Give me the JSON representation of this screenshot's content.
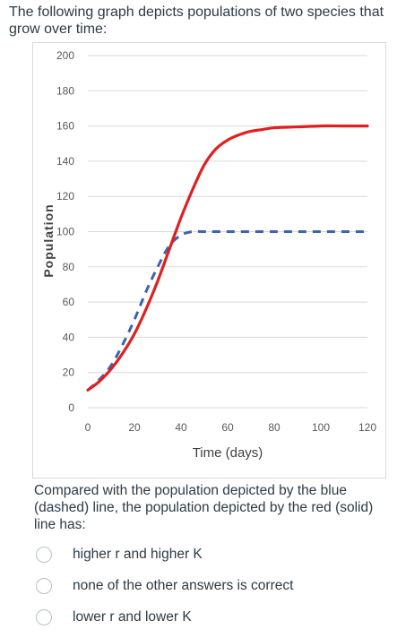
{
  "question": {
    "intro": "The following graph depicts populations of two species that grow over time:",
    "prompt": "Compared with the population depicted by the blue (dashed) line, the population depicted by the red (solid) line has:",
    "options": [
      "higher r and higher K",
      "none of the other answers is correct",
      "lower r and lower K"
    ]
  },
  "chart_data": {
    "type": "line",
    "xlabel": "Time (days)",
    "ylabel": "Population",
    "xlim": [
      0,
      120
    ],
    "ylim": [
      0,
      200
    ],
    "xticks": [
      0,
      20,
      40,
      60,
      80,
      100,
      120
    ],
    "yticks": [
      0,
      20,
      40,
      60,
      80,
      100,
      120,
      140,
      160,
      180,
      200
    ],
    "grid": true,
    "series": [
      {
        "style": "solid",
        "color": "#e02020",
        "x": [
          0,
          5,
          10,
          15,
          20,
          25,
          30,
          35,
          40,
          45,
          50,
          55,
          60,
          65,
          70,
          75,
          80,
          90,
          100,
          110,
          120
        ],
        "y": [
          10,
          15,
          22,
          31,
          42,
          56,
          72,
          90,
          108,
          124,
          138,
          147,
          152,
          155,
          157,
          158,
          159,
          159.5,
          160,
          160,
          160
        ]
      },
      {
        "style": "dashed",
        "color": "#3b64ad",
        "x": [
          0,
          5,
          10,
          15,
          20,
          25,
          30,
          35,
          40,
          45,
          50,
          60,
          80,
          100,
          120
        ],
        "y": [
          10,
          16,
          24,
          36,
          50,
          66,
          80,
          92,
          98,
          100,
          100,
          100,
          100,
          100,
          100
        ]
      }
    ]
  }
}
